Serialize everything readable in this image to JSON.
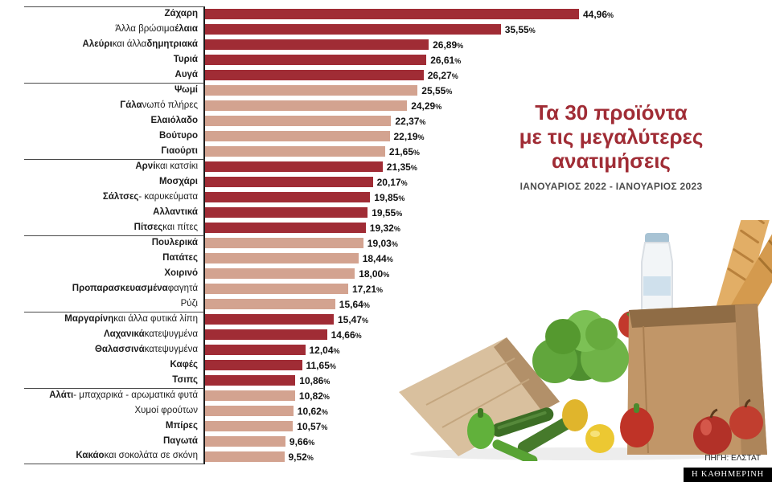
{
  "title": {
    "line1": "Τα 30 προϊόντα",
    "line2": "με τις μεγαλύτερες ανατιμήσεις",
    "subtitle": "ΙΑΝΟΥΑΡΙΟΣ 2022 - ΙΑΝΟΥΑΡΙΟΣ 2023"
  },
  "footer": {
    "source": "ΠΗΓΗ: ΕΛΣΤΑΤ",
    "brand": "Η ΚΑΘΗΜΕΡΙΝΗ"
  },
  "chart_data": {
    "type": "bar",
    "orientation": "horizontal",
    "title": "Τα 30 προϊόντα με τις μεγαλύτερες ανατιμήσεις",
    "subtitle": "ΙΑΝΟΥΑΡΙΟΣ 2022 - ΙΑΝΟΥΑΡΙΟΣ 2023",
    "xlabel": "",
    "ylabel": "",
    "xlim": [
      0,
      48
    ],
    "grid": false,
    "legend": "none",
    "percent_symbol": "%",
    "colors": {
      "dark": "#a02c35",
      "light": "#d3a390"
    },
    "items": [
      {
        "parts": [
          {
            "t": "Ζάχαρη",
            "b": true
          }
        ],
        "value": 44.96,
        "display": "44,96",
        "color": "dark",
        "section": true
      },
      {
        "parts": [
          {
            "t": "Άλλα βρώσιμα ",
            "b": false
          },
          {
            "t": "έλαια",
            "b": true
          }
        ],
        "value": 35.55,
        "display": "35,55",
        "color": "dark",
        "section": false
      },
      {
        "parts": [
          {
            "t": "Αλεύρι",
            "b": true
          },
          {
            "t": " και άλλα ",
            "b": false
          },
          {
            "t": "δημητριακά",
            "b": true
          }
        ],
        "value": 26.89,
        "display": "26,89",
        "color": "dark",
        "section": false
      },
      {
        "parts": [
          {
            "t": "Τυριά",
            "b": true
          }
        ],
        "value": 26.61,
        "display": "26,61",
        "color": "dark",
        "section": false
      },
      {
        "parts": [
          {
            "t": "Αυγά",
            "b": true
          }
        ],
        "value": 26.27,
        "display": "26,27",
        "color": "dark",
        "section": false
      },
      {
        "parts": [
          {
            "t": "Ψωμί",
            "b": true
          }
        ],
        "value": 25.55,
        "display": "25,55",
        "color": "light",
        "section": true
      },
      {
        "parts": [
          {
            "t": "Γάλα",
            "b": true
          },
          {
            "t": " νωπό πλήρες",
            "b": false
          }
        ],
        "value": 24.29,
        "display": "24,29",
        "color": "light",
        "section": false
      },
      {
        "parts": [
          {
            "t": "Ελαιόλαδο",
            "b": true
          }
        ],
        "value": 22.37,
        "display": "22,37",
        "color": "light",
        "section": false
      },
      {
        "parts": [
          {
            "t": "Βούτυρο",
            "b": true
          }
        ],
        "value": 22.19,
        "display": "22,19",
        "color": "light",
        "section": false
      },
      {
        "parts": [
          {
            "t": "Γιαούρτι",
            "b": true
          }
        ],
        "value": 21.65,
        "display": "21,65",
        "color": "light",
        "section": false
      },
      {
        "parts": [
          {
            "t": "Αρνί",
            "b": true
          },
          {
            "t": " και κατσίκι",
            "b": false
          }
        ],
        "value": 21.35,
        "display": "21,35",
        "color": "dark",
        "section": true
      },
      {
        "parts": [
          {
            "t": "Μοσχάρι",
            "b": true
          }
        ],
        "value": 20.17,
        "display": "20,17",
        "color": "dark",
        "section": false
      },
      {
        "parts": [
          {
            "t": "Σάλτσες",
            "b": true
          },
          {
            "t": " - καρυκεύματα",
            "b": false
          }
        ],
        "value": 19.85,
        "display": "19,85",
        "color": "dark",
        "section": false
      },
      {
        "parts": [
          {
            "t": "Αλλαντικά",
            "b": true
          }
        ],
        "value": 19.55,
        "display": "19,55",
        "color": "dark",
        "section": false
      },
      {
        "parts": [
          {
            "t": "Πίτσες",
            "b": true
          },
          {
            "t": " και πίτες",
            "b": false
          }
        ],
        "value": 19.32,
        "display": "19,32",
        "color": "dark",
        "section": false
      },
      {
        "parts": [
          {
            "t": "Πουλερικά",
            "b": true
          }
        ],
        "value": 19.03,
        "display": "19,03",
        "color": "light",
        "section": true
      },
      {
        "parts": [
          {
            "t": "Πατάτες",
            "b": true
          }
        ],
        "value": 18.44,
        "display": "18,44",
        "color": "light",
        "section": false
      },
      {
        "parts": [
          {
            "t": "Χοιρινό",
            "b": true
          }
        ],
        "value": 18.0,
        "display": "18,00",
        "color": "light",
        "section": false
      },
      {
        "parts": [
          {
            "t": "Προπαρασκευασμένα",
            "b": true
          },
          {
            "t": " φαγητά",
            "b": false
          }
        ],
        "value": 17.21,
        "display": "17,21",
        "color": "light",
        "section": false
      },
      {
        "parts": [
          {
            "t": "Ρύζι",
            "b": false
          }
        ],
        "value": 15.64,
        "display": "15,64",
        "color": "light",
        "section": false
      },
      {
        "parts": [
          {
            "t": "Μαργαρίνη",
            "b": true
          },
          {
            "t": " και άλλα φυτικά λίπη",
            "b": false
          }
        ],
        "value": 15.47,
        "display": "15,47",
        "color": "dark",
        "section": true
      },
      {
        "parts": [
          {
            "t": "Λαχανικά",
            "b": true
          },
          {
            "t": " κατεψυγμένα",
            "b": false
          }
        ],
        "value": 14.66,
        "display": "14,66",
        "color": "dark",
        "section": false
      },
      {
        "parts": [
          {
            "t": "Θαλασσινά",
            "b": true
          },
          {
            "t": " κατεψυγμένα",
            "b": false
          }
        ],
        "value": 12.04,
        "display": "12,04",
        "color": "dark",
        "section": false
      },
      {
        "parts": [
          {
            "t": "Καφές",
            "b": true
          }
        ],
        "value": 11.65,
        "display": "11,65",
        "color": "dark",
        "section": false
      },
      {
        "parts": [
          {
            "t": "Τσιπς",
            "b": true
          }
        ],
        "value": 10.86,
        "display": "10,86",
        "color": "dark",
        "section": false
      },
      {
        "parts": [
          {
            "t": "Αλάτι",
            "b": true
          },
          {
            "t": " - μπαχαρικά - αρωματικά φυτά",
            "b": false
          }
        ],
        "value": 10.82,
        "display": "10,82",
        "color": "light",
        "section": true
      },
      {
        "parts": [
          {
            "t": "Χυμοί φρούτων",
            "b": false
          }
        ],
        "value": 10.62,
        "display": "10,62",
        "color": "light",
        "section": false
      },
      {
        "parts": [
          {
            "t": "Μπίρες",
            "b": true
          }
        ],
        "value": 10.57,
        "display": "10,57",
        "color": "light",
        "section": false
      },
      {
        "parts": [
          {
            "t": "Παγωτά",
            "b": true
          }
        ],
        "value": 9.66,
        "display": "9,66",
        "color": "light",
        "section": false
      },
      {
        "parts": [
          {
            "t": "Κακάο",
            "b": true
          },
          {
            "t": " και σοκολάτα σε σκόνη",
            "b": false
          }
        ],
        "value": 9.52,
        "display": "9,52",
        "color": "light",
        "section": false
      }
    ]
  }
}
